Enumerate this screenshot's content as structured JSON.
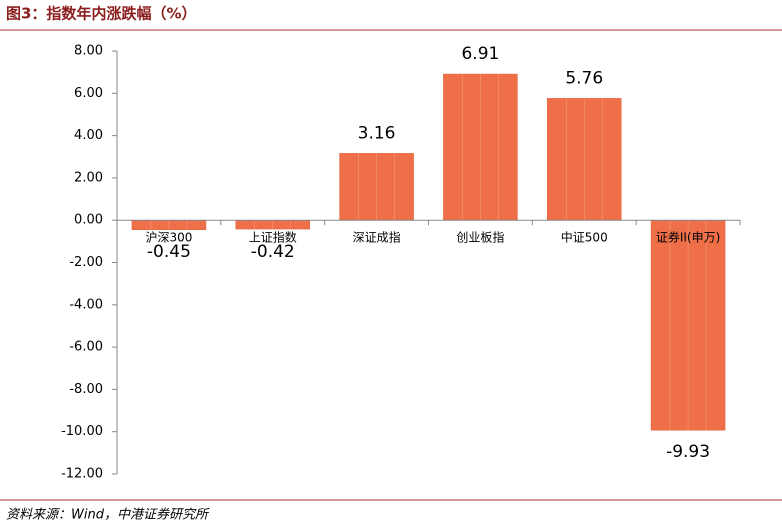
{
  "chart_data": {
    "type": "bar",
    "title": "图3：指数年内涨跌幅（%）",
    "source": "资料来源：Wind，中港证券研究所",
    "categories": [
      "沪深300",
      "上证指数",
      "深证成指",
      "创业板指",
      "中证500",
      "证券II(申万)"
    ],
    "values": [
      -0.45,
      -0.42,
      3.16,
      6.91,
      5.76,
      -9.93
    ],
    "color": "#ef6f48",
    "ylim": [
      -12,
      8
    ],
    "yticks": [
      {
        "value": 8,
        "label": "8.00"
      },
      {
        "value": 6,
        "label": "6.00"
      },
      {
        "value": 4,
        "label": "4.00"
      },
      {
        "value": 2,
        "label": "2.00"
      },
      {
        "value": 0,
        "label": "0.00"
      },
      {
        "value": -2,
        "label": "-2.00"
      },
      {
        "value": -4,
        "label": "-4.00"
      },
      {
        "value": -6,
        "label": "-6.00"
      },
      {
        "value": -8,
        "label": "-8.00"
      },
      {
        "value": -10,
        "label": "-10.00"
      },
      {
        "value": -12,
        "label": "-12.00"
      }
    ]
  }
}
